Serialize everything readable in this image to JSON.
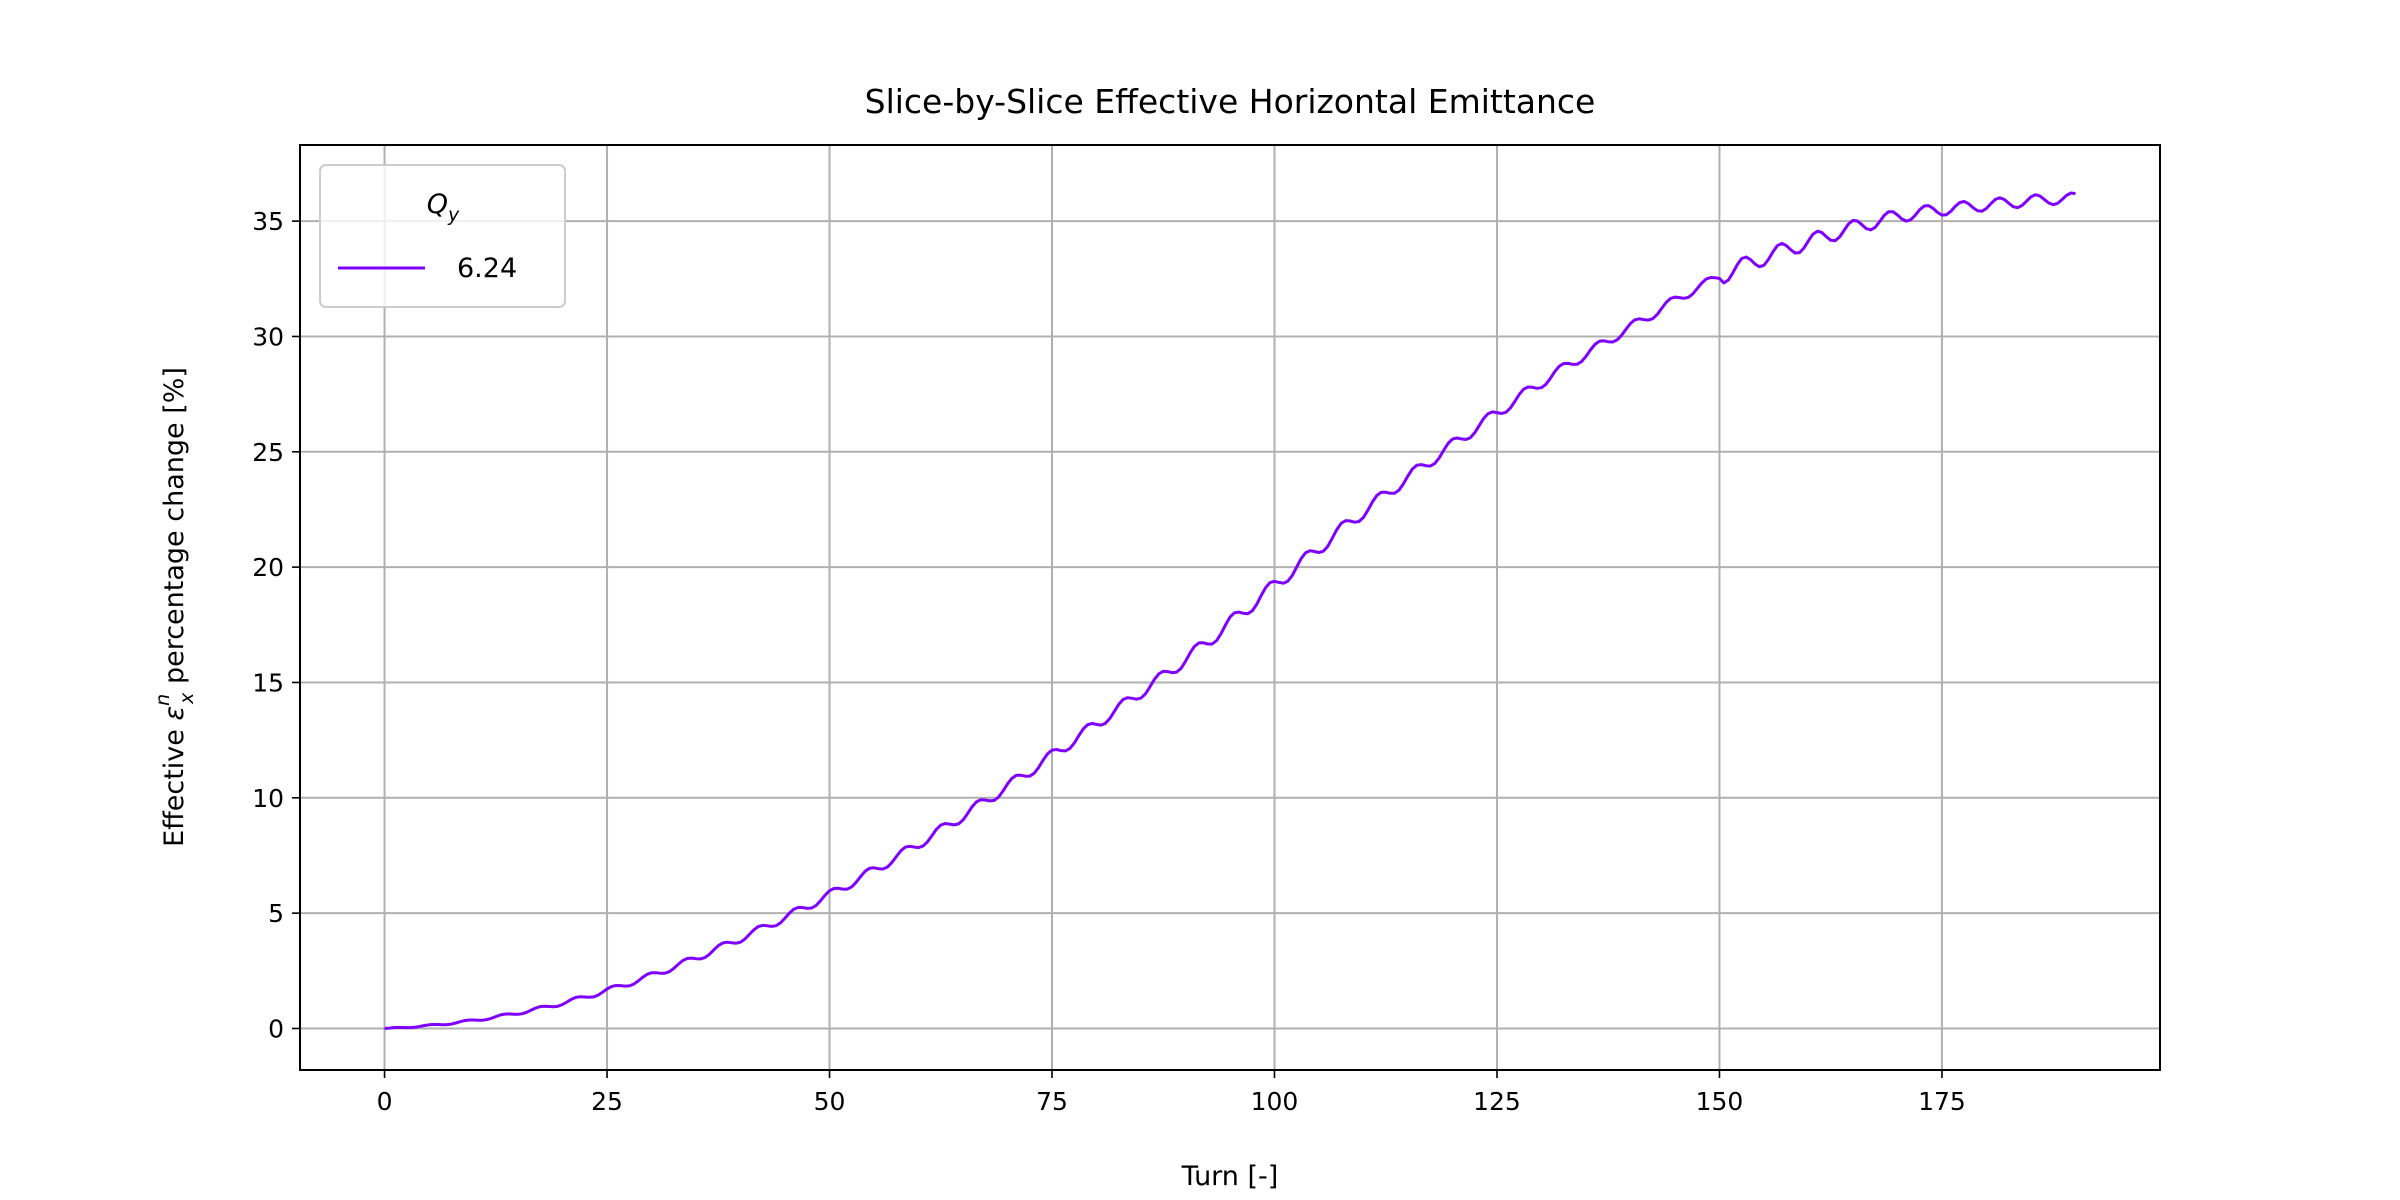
{
  "chart_data": {
    "type": "line",
    "title": "Slice-by-Slice Effective Horizontal Emittance",
    "xlabel": "Turn [-]",
    "ylabel": {
      "prefix": "Effective ",
      "symbol": "ε",
      "superscript": "n",
      "subscript": "x",
      "suffix": " percentage change [%]"
    },
    "xlim": [
      -9.5,
      199.5
    ],
    "ylim": [
      -1.8,
      38.3
    ],
    "xticks": [
      0,
      25,
      50,
      75,
      100,
      125,
      150,
      175
    ],
    "yticks": [
      0,
      5,
      10,
      15,
      20,
      25,
      30,
      35
    ],
    "grid": true,
    "legend": {
      "placement": "upper-left",
      "title_symbol": "Q",
      "title_subscript": "y"
    },
    "series": [
      {
        "name": "6.24",
        "color": "#7f00ff",
        "x": [
          0,
          10,
          20,
          30,
          40,
          50,
          60,
          70,
          80,
          90,
          100,
          110,
          120,
          130,
          140,
          150,
          160,
          170,
          180,
          190
        ],
        "y": [
          0.0,
          0.35,
          1.1,
          2.3,
          3.9,
          5.8,
          8.0,
          10.5,
          13.2,
          16.0,
          19.2,
          22.4,
          25.3,
          28.0,
          30.4,
          32.6,
          34.1,
          35.2,
          35.7,
          36.0
        ]
      }
    ]
  }
}
